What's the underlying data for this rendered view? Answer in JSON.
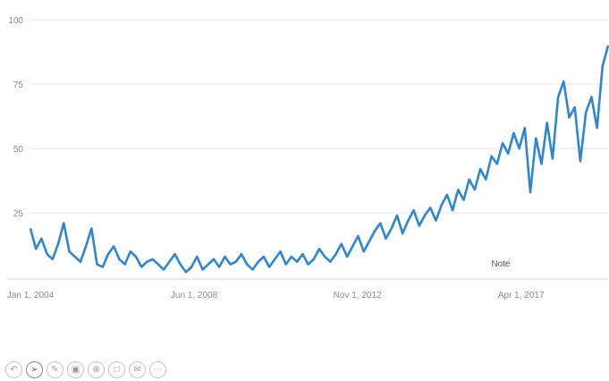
{
  "chart_data": {
    "type": "line",
    "title": "",
    "xlabel": "",
    "ylabel": "",
    "ylim": [
      0,
      100
    ],
    "y_ticks": [
      25,
      50,
      75,
      100
    ],
    "x_tick_labels": [
      "Jan 1, 2004",
      "Jun 1, 2008",
      "Nov 1, 2012",
      "Apr 1, 2017"
    ],
    "x_tick_values": [
      2004.0,
      2008.42,
      2012.83,
      2017.25
    ],
    "x_range": [
      2004.0,
      2019.6
    ],
    "grid": true,
    "legend": "none",
    "annotations": [
      {
        "text": "Note",
        "x": 2016.7
      }
    ],
    "series": [
      {
        "color": "#2f86d0",
        "x": [
          2004.0,
          2004.15,
          2004.3,
          2004.45,
          2004.6,
          2004.75,
          2004.9,
          2005.05,
          2005.2,
          2005.35,
          2005.5,
          2005.65,
          2005.8,
          2005.95,
          2006.1,
          2006.25,
          2006.4,
          2006.55,
          2006.7,
          2006.85,
          2007.0,
          2007.15,
          2007.3,
          2007.45,
          2007.6,
          2007.75,
          2007.9,
          2008.05,
          2008.2,
          2008.35,
          2008.5,
          2008.65,
          2008.8,
          2008.95,
          2009.1,
          2009.25,
          2009.4,
          2009.55,
          2009.7,
          2009.85,
          2010.0,
          2010.15,
          2010.3,
          2010.45,
          2010.6,
          2010.75,
          2010.9,
          2011.05,
          2011.2,
          2011.35,
          2011.5,
          2011.65,
          2011.8,
          2011.95,
          2012.1,
          2012.25,
          2012.4,
          2012.55,
          2012.7,
          2012.85,
          2013.0,
          2013.15,
          2013.3,
          2013.45,
          2013.6,
          2013.75,
          2013.9,
          2014.05,
          2014.2,
          2014.35,
          2014.5,
          2014.65,
          2014.8,
          2014.95,
          2015.1,
          2015.25,
          2015.4,
          2015.55,
          2015.7,
          2015.85,
          2016.0,
          2016.15,
          2016.3,
          2016.45,
          2016.6,
          2016.75,
          2016.9,
          2017.05,
          2017.2,
          2017.35,
          2017.5,
          2017.65,
          2017.8,
          2017.95,
          2018.1,
          2018.25,
          2018.4,
          2018.55,
          2018.7,
          2018.85,
          2019.0,
          2019.15,
          2019.3,
          2019.45,
          2019.6
        ],
        "y": [
          19,
          11,
          15,
          9,
          7,
          13,
          21,
          10,
          8,
          6,
          12,
          19,
          5,
          4,
          9,
          12,
          7,
          5,
          10,
          8,
          4,
          6,
          7,
          5,
          3,
          6,
          9,
          5,
          2,
          4,
          8,
          3,
          5,
          7,
          4,
          8,
          5,
          6,
          9,
          5,
          3,
          6,
          8,
          4,
          7,
          10,
          5,
          8,
          6,
          9,
          5,
          7,
          11,
          8,
          6,
          9,
          13,
          8,
          12,
          16,
          10,
          14,
          18,
          21,
          15,
          19,
          24,
          17,
          22,
          26,
          20,
          24,
          27,
          22,
          28,
          32,
          26,
          34,
          30,
          38,
          34,
          42,
          38,
          47,
          44,
          52,
          48,
          56,
          50,
          58,
          33,
          54,
          44,
          60,
          46,
          70,
          76,
          62,
          66,
          45,
          64,
          70,
          58,
          82,
          90
        ]
      }
    ]
  },
  "toolbar": {
    "icons": [
      "undo-icon",
      "cursor-icon",
      "pencil-icon",
      "save-icon",
      "zoom-icon",
      "comment-icon",
      "mail-icon",
      "more-icon"
    ]
  }
}
